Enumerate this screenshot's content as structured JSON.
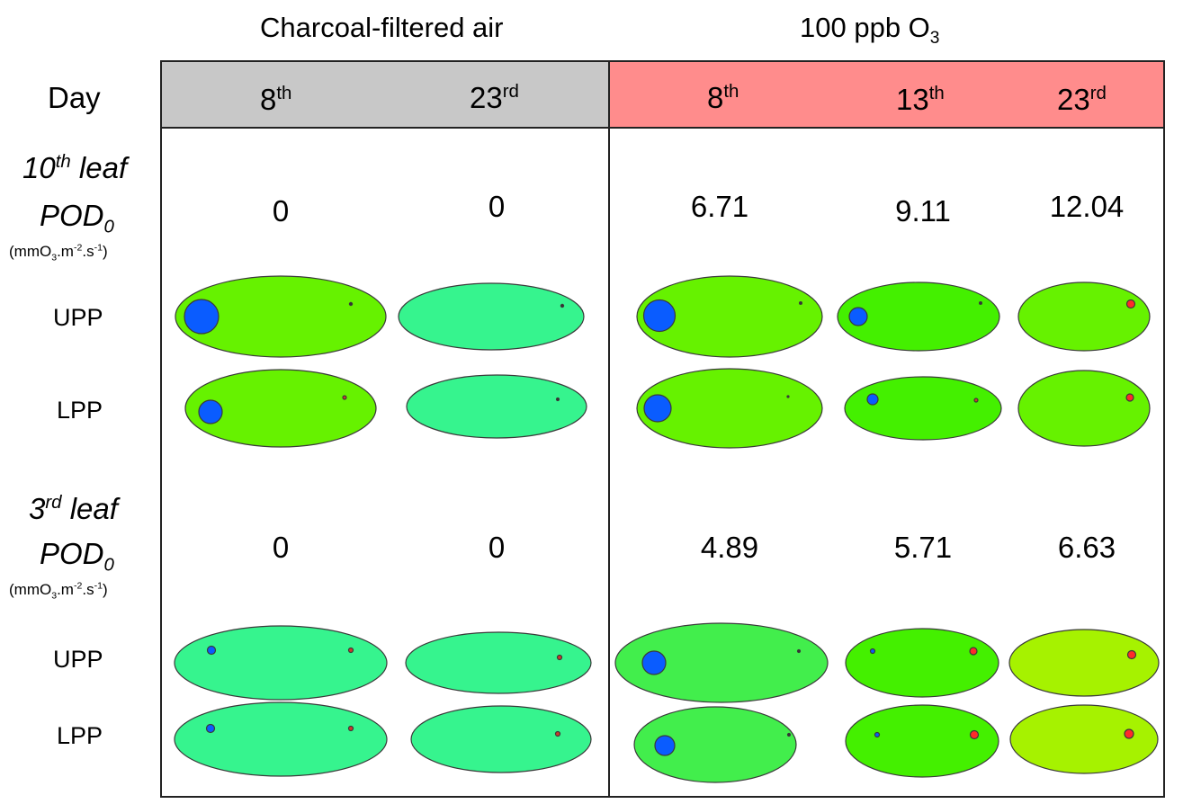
{
  "groups": {
    "control": "Charcoal-filtered air",
    "ozone": {
      "prefix": "100 ppb O",
      "sub": "3"
    }
  },
  "day_label": "Day",
  "days": {
    "control": [
      {
        "num": "8",
        "sup": "th"
      },
      {
        "num": "23",
        "sup": "rd"
      }
    ],
    "ozone": [
      {
        "num": "8",
        "sup": "th"
      },
      {
        "num": "13",
        "sup": "th"
      },
      {
        "num": "23",
        "sup": "rd"
      }
    ]
  },
  "leaf10": {
    "title_num": "10",
    "title_sup": "th",
    "title_rest": " leaf",
    "pod_main": "POD",
    "pod_sub": "0",
    "unit": {
      "a": "(mmO",
      "a_sub": "3",
      "b": ".m",
      "b_sup": "-2",
      "c": ".s",
      "c_sup": "-1",
      "d": ")"
    },
    "values": [
      "0",
      "0",
      "6.71",
      "9.11",
      "12.04"
    ]
  },
  "leaf3": {
    "title_num": "3",
    "title_sup": "rd",
    "title_rest": " leaf",
    "pod_main": "POD",
    "pod_sub": "0",
    "unit": {
      "a": "(mmO",
      "a_sub": "3",
      "b": ".m",
      "b_sup": "-2",
      "c": ".s",
      "c_sup": "-1",
      "d": ")"
    },
    "values": [
      "0",
      "0",
      "4.89",
      "5.71",
      "6.63"
    ]
  },
  "rows": {
    "upp": "UPP",
    "lpp": "LPP"
  },
  "colors": {
    "control_header": "#c8c8c8",
    "ozone_header": "#ff8c8c",
    "leaf_bright_green": "#66f200",
    "leaf_mint": "#36f48e",
    "leaf_green": "#44f000",
    "leaf_pale_green": "#42ee4c",
    "leaf_yellow_green": "#a6f200",
    "blue_spot": "#0a5cff",
    "red_spot": "#ff2a2a"
  }
}
